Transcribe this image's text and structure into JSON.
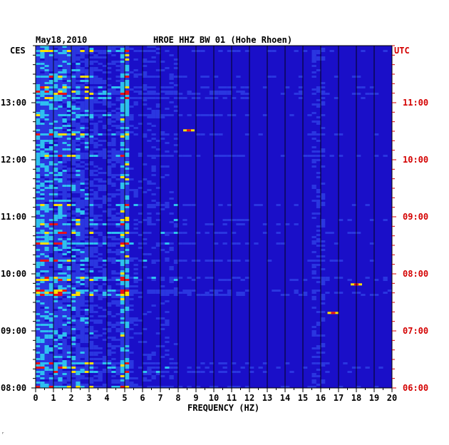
{
  "chart_data": {
    "type": "heatmap",
    "title_left": "May18,2010",
    "title_center": "HROE HHZ BW 01 (Hohe Rhoen)",
    "left_tz": "CES",
    "right_tz": "UTC",
    "xlabel": "FREQUENCY (HZ)",
    "x_ticks": [
      "0",
      "1",
      "2",
      "3",
      "4",
      "5",
      "6",
      "7",
      "8",
      "9",
      "10",
      "11",
      "12",
      "13",
      "14",
      "15",
      "16",
      "17",
      "18",
      "19",
      "20"
    ],
    "xlim": [
      0,
      20
    ],
    "left_time_labels": [
      "13:00",
      "12:00",
      "11:00",
      "10:00",
      "09:00",
      "08:00"
    ],
    "right_time_labels": [
      "11:00",
      "10:00",
      "09:00",
      "08:00",
      "07:00",
      "06:00"
    ],
    "time_range_hours": 6,
    "colors": {
      "background": "#1a0fc8",
      "low": "#2a36e0",
      "mid": "#2ec0f0",
      "high": "#ffe000",
      "peak": "#e8121a",
      "grid": "#000000",
      "utc_label": "#d40000"
    },
    "features": {
      "microseismic_band_hz": [
        0,
        3.2
      ],
      "persistent_line_hz": 4.9,
      "weak_lines_hz": [
        15.6,
        16.0
      ],
      "hot_spots": [
        {
          "f": 8.6,
          "t_min_from_top": 88
        },
        {
          "f": 16.7,
          "t_min_from_top": 280
        },
        {
          "f": 18.0,
          "t_min_from_top": 250
        }
      ]
    }
  },
  "footer_mark": "ʳ"
}
